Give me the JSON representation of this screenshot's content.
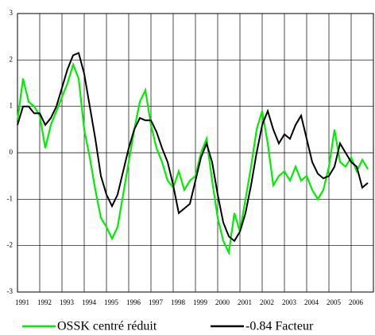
{
  "chart_data": {
    "type": "line",
    "x": [
      1991,
      1991.25,
      1991.5,
      1991.75,
      1992,
      1992.25,
      1992.5,
      1992.75,
      1993,
      1993.25,
      1993.5,
      1993.75,
      1994,
      1994.25,
      1994.5,
      1994.75,
      1995,
      1995.25,
      1995.5,
      1995.75,
      1996,
      1996.25,
      1996.5,
      1996.75,
      1997,
      1997.25,
      1997.5,
      1997.75,
      1998,
      1998.25,
      1998.5,
      1998.75,
      1999,
      1999.25,
      1999.5,
      1999.75,
      2000,
      2000.25,
      2000.5,
      2000.75,
      2001,
      2001.25,
      2001.5,
      2001.75,
      2002,
      2002.25,
      2002.5,
      2002.75,
      2003,
      2003.25,
      2003.5,
      2003.75,
      2004,
      2004.25,
      2004.5,
      2004.75,
      2005,
      2005.25,
      2005.5,
      2005.75,
      2006,
      2006.25,
      2006.5,
      2006.75
    ],
    "series": [
      {
        "name": "OSSK centré réduit",
        "color": "#00ee00",
        "values": [
          0.7,
          1.6,
          1.1,
          1.0,
          0.8,
          0.1,
          0.6,
          0.9,
          1.2,
          1.5,
          1.9,
          1.6,
          0.5,
          -0.1,
          -0.8,
          -1.4,
          -1.6,
          -1.85,
          -1.6,
          -0.9,
          -0.2,
          0.5,
          1.1,
          1.35,
          0.6,
          0.1,
          -0.2,
          -0.6,
          -0.75,
          -0.4,
          -0.8,
          -0.6,
          -0.5,
          0.0,
          0.3,
          -0.6,
          -1.4,
          -1.9,
          -2.15,
          -1.3,
          -1.7,
          -1.0,
          -0.3,
          0.5,
          0.9,
          0.2,
          -0.7,
          -0.5,
          -0.4,
          -0.6,
          -0.3,
          -0.6,
          -0.5,
          -0.8,
          -1.0,
          -0.8,
          -0.3,
          0.5,
          -0.2,
          -0.3,
          -0.1,
          -0.4,
          -0.15,
          -0.35
        ]
      },
      {
        "name": "-0.84 Facteur",
        "color": "#000000",
        "values": [
          0.6,
          1.0,
          1.0,
          0.85,
          0.85,
          0.6,
          0.75,
          1.0,
          1.4,
          1.8,
          2.1,
          2.15,
          1.7,
          1.0,
          0.3,
          -0.5,
          -0.9,
          -1.15,
          -0.9,
          -0.4,
          0.1,
          0.5,
          0.75,
          0.7,
          0.7,
          0.45,
          0.1,
          -0.2,
          -0.7,
          -1.3,
          -1.2,
          -1.1,
          -0.6,
          -0.1,
          0.2,
          -0.2,
          -0.9,
          -1.5,
          -1.8,
          -1.9,
          -1.7,
          -1.3,
          -0.7,
          0.0,
          0.6,
          0.9,
          0.5,
          0.2,
          0.4,
          0.3,
          0.6,
          0.8,
          0.3,
          -0.2,
          -0.45,
          -0.55,
          -0.5,
          -0.3,
          0.2,
          0.0,
          -0.2,
          -0.3,
          -0.75,
          -0.65
        ]
      }
    ],
    "xlim": [
      1991,
      2007
    ],
    "xticks": [
      1991,
      1992,
      1993,
      1994,
      1995,
      1996,
      1997,
      1998,
      1999,
      2000,
      2001,
      2002,
      2003,
      2004,
      2005,
      2006
    ],
    "ylim": [
      -3,
      3
    ],
    "yticks": [
      -3,
      -2,
      -1,
      0,
      1,
      2,
      3
    ],
    "grid": true
  }
}
